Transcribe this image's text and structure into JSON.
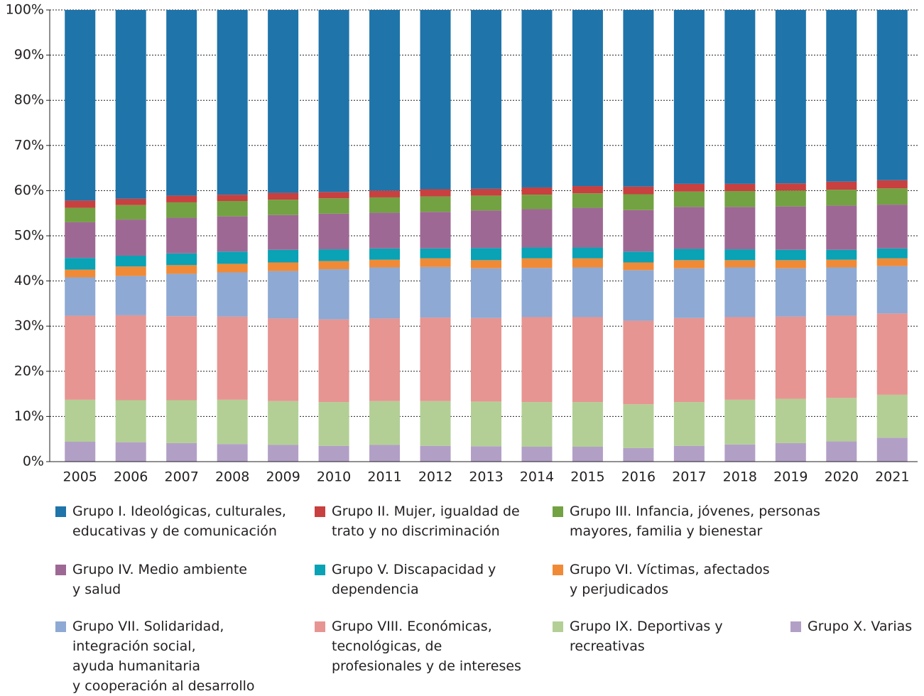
{
  "chart_data": {
    "type": "stacked_bar",
    "categories": [
      "2005",
      "2006",
      "2007",
      "2008",
      "2009",
      "2010",
      "2011",
      "2012",
      "2013",
      "2014",
      "2015",
      "2016",
      "2017",
      "2018",
      "2019",
      "2020",
      "2021"
    ],
    "series": [
      {
        "name": "Grupo I. Ideológicas, culturales,\neducativas y de comunicación",
        "color": "#1f74aa",
        "values": [
          42.2,
          41.8,
          41.1,
          40.9,
          40.5,
          40.3,
          40.0,
          39.7,
          39.6,
          39.3,
          39.0,
          39.1,
          38.5,
          38.5,
          38.4,
          38.0,
          37.7
        ]
      },
      {
        "name": "Grupo II. Mujer, igualdad de\ntrato y no discriminación",
        "color": "#c8403f",
        "values": [
          1.6,
          1.4,
          1.5,
          1.4,
          1.5,
          1.4,
          1.5,
          1.6,
          1.5,
          1.6,
          1.6,
          1.7,
          1.7,
          1.6,
          1.6,
          1.8,
          1.8
        ]
      },
      {
        "name": "Grupo III. Infancia, jóvenes, personas\nmayores, familia y bienestar",
        "color": "#72a242",
        "values": [
          3.2,
          3.2,
          3.4,
          3.4,
          3.4,
          3.4,
          3.4,
          3.4,
          3.3,
          3.2,
          3.2,
          3.5,
          3.4,
          3.5,
          3.5,
          3.5,
          3.6
        ]
      },
      {
        "name": "Grupo IV. Medio ambiente\ny salud",
        "color": "#9e6894",
        "values": [
          7.9,
          8.0,
          7.9,
          7.8,
          7.7,
          7.9,
          7.9,
          8.1,
          8.3,
          8.5,
          8.8,
          9.2,
          9.3,
          9.4,
          9.6,
          9.8,
          9.7
        ]
      },
      {
        "name": "Grupo V. Discapacidad y\ndependencia",
        "color": "#0aa2b5",
        "values": [
          2.6,
          2.4,
          2.6,
          2.7,
          2.8,
          2.6,
          2.5,
          2.2,
          2.7,
          2.4,
          2.4,
          2.4,
          2.5,
          2.4,
          2.3,
          2.2,
          2.2
        ]
      },
      {
        "name": "Grupo VI. Víctimas, afectados\ny perjudicados",
        "color": "#f18a36",
        "values": [
          1.7,
          2.1,
          1.9,
          1.9,
          1.9,
          1.8,
          1.7,
          1.9,
          1.8,
          2.1,
          2.0,
          1.7,
          1.8,
          1.6,
          1.8,
          1.7,
          1.7
        ]
      },
      {
        "name": "Grupo VII. Solidaridad,\nintegración social,\nayuda humanitaria\ny cooperación al desarrollo",
        "color": "#8ea9d3",
        "values": [
          8.5,
          8.7,
          9.4,
          9.8,
          10.5,
          11.1,
          11.3,
          11.2,
          11.0,
          10.9,
          11.0,
          11.2,
          11.0,
          11.0,
          10.7,
          10.7,
          10.5
        ]
      },
      {
        "name": "Grupo VIII. Económicas,\ntecnológicas, de\nprofesionales y de intereses",
        "color": "#e69592",
        "values": [
          18.6,
          18.8,
          18.6,
          18.4,
          18.3,
          18.3,
          18.3,
          18.5,
          18.5,
          18.8,
          18.8,
          18.5,
          18.6,
          18.3,
          18.2,
          18.2,
          18.0
        ]
      },
      {
        "name": "Grupo IX. Deportivas y\nrecreativas",
        "color": "#b3cf96",
        "values": [
          9.3,
          9.3,
          9.5,
          9.8,
          9.7,
          9.7,
          9.7,
          9.9,
          9.9,
          9.9,
          9.9,
          9.7,
          9.7,
          9.9,
          9.8,
          9.6,
          9.5
        ]
      },
      {
        "name": "Grupo X. Varias",
        "color": "#b29fc6",
        "values": [
          4.4,
          4.3,
          4.1,
          3.9,
          3.7,
          3.5,
          3.7,
          3.5,
          3.4,
          3.3,
          3.3,
          3.0,
          3.5,
          3.8,
          4.1,
          4.5,
          5.3
        ]
      }
    ],
    "ylim": [
      0,
      100
    ],
    "yticks": [
      {
        "value": 0,
        "label": "0%"
      },
      {
        "value": 10,
        "label": "10%"
      },
      {
        "value": 20,
        "label": "20%"
      },
      {
        "value": 30,
        "label": "30%"
      },
      {
        "value": 40,
        "label": "40%"
      },
      {
        "value": 50,
        "label": "50%"
      },
      {
        "value": 60,
        "label": "60%"
      },
      {
        "value": 70,
        "label": "70%"
      },
      {
        "value": 80,
        "label": "80%"
      },
      {
        "value": 90,
        "label": "90%"
      },
      {
        "value": 100,
        "label": "100%"
      }
    ],
    "grid": true
  }
}
